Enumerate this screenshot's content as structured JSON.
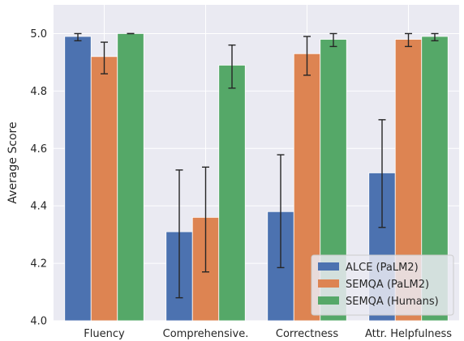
{
  "chart_data": {
    "type": "bar",
    "title": "",
    "xlabel": "",
    "ylabel": "Average Score",
    "ylim": [
      4.0,
      5.1
    ],
    "yticks": [
      "4.0",
      "4.2",
      "4.4",
      "4.6",
      "4.8",
      "5.0"
    ],
    "ytick_values": [
      4.0,
      4.2,
      4.4,
      4.6,
      4.8,
      5.0
    ],
    "categories": [
      "Fluency",
      "Comprehensive.",
      "Correctness",
      "Attr. Helpfulness"
    ],
    "grid": true,
    "legend_position": "bottom-right",
    "series": [
      {
        "name": "ALCE (PaLM2)",
        "color": "#4c72b0",
        "values": [
          4.99,
          4.31,
          4.38,
          4.515
        ],
        "error_low": [
          4.975,
          4.08,
          4.185,
          4.325
        ],
        "error_high": [
          5.0,
          4.525,
          4.578,
          4.7
        ]
      },
      {
        "name": "SEMQA (PaLM2)",
        "color": "#dd8452",
        "values": [
          4.92,
          4.36,
          4.93,
          4.98
        ],
        "error_low": [
          4.86,
          4.17,
          4.855,
          4.955
        ],
        "error_high": [
          4.97,
          4.535,
          4.99,
          5.0
        ]
      },
      {
        "name": "SEMQA (Humans)",
        "color": "#55a868",
        "values": [
          5.0,
          4.89,
          4.98,
          4.99
        ],
        "error_low": [
          5.0,
          4.81,
          4.955,
          4.975
        ],
        "error_high": [
          5.0,
          4.96,
          5.0,
          5.0
        ]
      }
    ]
  }
}
